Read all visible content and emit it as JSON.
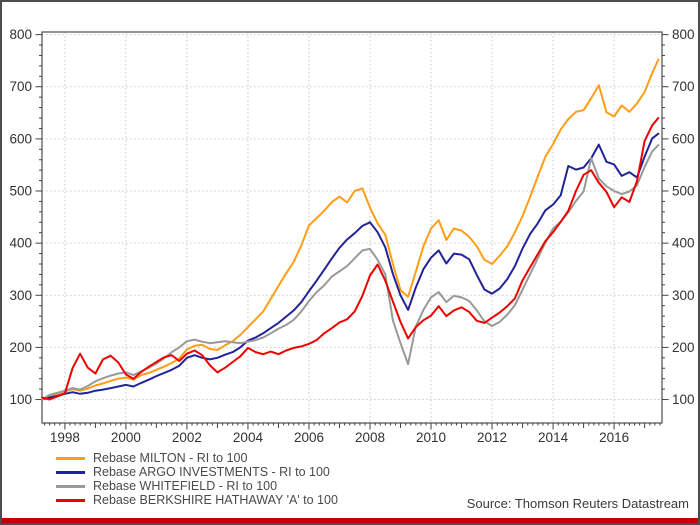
{
  "source": "Source: Thomson Reuters Datastream",
  "colors": {
    "background": "#FFFFFF",
    "frame": "#4D4D4D",
    "axis": "#404040",
    "grid": "#C9C9C9",
    "text": "#333333",
    "bottom_bar": "#C00000"
  },
  "chart_data": {
    "type": "line",
    "title": "",
    "xlabel": "",
    "ylabel": "",
    "grid": true,
    "legend_position": "bottom-left",
    "xlim": [
      1997.25,
      2017.57
    ],
    "ylim": [
      55,
      805
    ],
    "x_ticks": [
      1998,
      2000,
      2002,
      2004,
      2006,
      2008,
      2010,
      2012,
      2014,
      2016
    ],
    "y_ticks": [
      100,
      200,
      300,
      400,
      500,
      600,
      700,
      800
    ],
    "y_minor_step": 20,
    "x_minor_step": 0.1667,
    "x": [
      1997.25,
      1997.5,
      1997.75,
      1998,
      1998.25,
      1998.5,
      1998.75,
      1999,
      1999.25,
      1999.5,
      1999.75,
      2000,
      2000.25,
      2000.5,
      2000.75,
      2001,
      2001.25,
      2001.5,
      2001.75,
      2002,
      2002.25,
      2002.5,
      2002.75,
      2003,
      2003.25,
      2003.5,
      2003.75,
      2004,
      2004.25,
      2004.5,
      2004.75,
      2005,
      2005.25,
      2005.5,
      2005.75,
      2006,
      2006.25,
      2006.5,
      2006.75,
      2007,
      2007.25,
      2007.5,
      2007.75,
      2008,
      2008.25,
      2008.5,
      2008.75,
      2009,
      2009.25,
      2009.5,
      2009.75,
      2010,
      2010.25,
      2010.5,
      2010.75,
      2011,
      2011.25,
      2011.5,
      2011.75,
      2012,
      2012.25,
      2012.5,
      2012.75,
      2013,
      2013.25,
      2013.5,
      2013.75,
      2014,
      2014.25,
      2014.5,
      2014.75,
      2015,
      2015.25,
      2015.5,
      2015.75,
      2016,
      2016.25,
      2016.5,
      2016.75,
      2017,
      2017.25,
      2017.45
    ],
    "series": [
      {
        "name": "milton",
        "label": "Rebase MILTON - RI to 100",
        "color": "#FF9E16",
        "values": [
          100,
          107,
          111,
          115,
          120,
          117,
          121,
          127,
          131,
          136,
          140,
          142,
          138,
          147,
          151,
          157,
          163,
          170,
          179,
          196,
          203,
          205,
          197,
          195,
          204,
          212,
          224,
          239,
          254,
          269,
          293,
          318,
          342,
          364,
          396,
          434,
          448,
          462,
          479,
          489,
          478,
          500,
          505,
          468,
          438,
          416,
          360,
          310,
          297,
          345,
          394,
          428,
          444,
          406,
          428,
          424,
          412,
          394,
          368,
          360,
          376,
          394,
          421,
          452,
          489,
          528,
          566,
          590,
          618,
          638,
          652,
          655,
          678,
          703,
          651,
          643,
          664,
          652,
          668,
          690,
          726,
          752
        ]
      },
      {
        "name": "argo-investments",
        "label": "Rebase ARGO INVESTMENTS - RI to 100",
        "color": "#222299",
        "values": [
          100,
          104,
          107,
          111,
          114,
          111,
          113,
          117,
          119,
          122,
          125,
          128,
          125,
          132,
          138,
          145,
          151,
          157,
          165,
          180,
          185,
          180,
          177,
          180,
          186,
          191,
          200,
          213,
          219,
          227,
          237,
          247,
          259,
          271,
          287,
          308,
          328,
          349,
          371,
          391,
          407,
          419,
          433,
          440,
          421,
          392,
          341,
          300,
          272,
          315,
          350,
          372,
          386,
          361,
          380,
          378,
          369,
          339,
          311,
          303,
          313,
          331,
          356,
          390,
          418,
          438,
          463,
          474,
          492,
          548,
          541,
          545,
          563,
          589,
          556,
          551,
          529,
          536,
          526,
          566,
          601,
          610
        ]
      },
      {
        "name": "whitefield",
        "label": "Rebase WHITEFIELD - RI to 100",
        "color": "#999999",
        "values": [
          100,
          109,
          113,
          117,
          122,
          119,
          126,
          135,
          141,
          146,
          150,
          152,
          147,
          154,
          161,
          169,
          179,
          191,
          200,
          212,
          215,
          211,
          208,
          210,
          212,
          210,
          208,
          211,
          214,
          219,
          227,
          236,
          243,
          253,
          269,
          289,
          306,
          319,
          336,
          346,
          356,
          371,
          386,
          389,
          368,
          340,
          252,
          208,
          168,
          240,
          272,
          296,
          306,
          287,
          299,
          296,
          289,
          271,
          250,
          241,
          249,
          263,
          281,
          311,
          341,
          371,
          401,
          428,
          441,
          459,
          481,
          499,
          563,
          524,
          509,
          500,
          494,
          499,
          511,
          546,
          576,
          588
        ]
      },
      {
        "name": "berkshire-hathaway-a",
        "label": "Rebase BERKSHIRE HATHAWAY 'A' to 100",
        "color": "#EE0000",
        "values": [
          104,
          100,
          106,
          112,
          160,
          188,
          161,
          150,
          177,
          184,
          171,
          148,
          140,
          153,
          163,
          172,
          181,
          185,
          174,
          188,
          194,
          185,
          166,
          152,
          161,
          172,
          183,
          199,
          191,
          187,
          192,
          187,
          194,
          199,
          202,
          207,
          214,
          227,
          237,
          248,
          254,
          269,
          299,
          338,
          359,
          328,
          288,
          249,
          217,
          239,
          252,
          261,
          279,
          260,
          271,
          277,
          268,
          251,
          247,
          257,
          267,
          279,
          294,
          329,
          354,
          379,
          404,
          421,
          441,
          462,
          500,
          531,
          540,
          516,
          498,
          469,
          488,
          479,
          519,
          596,
          626,
          640
        ]
      }
    ]
  }
}
